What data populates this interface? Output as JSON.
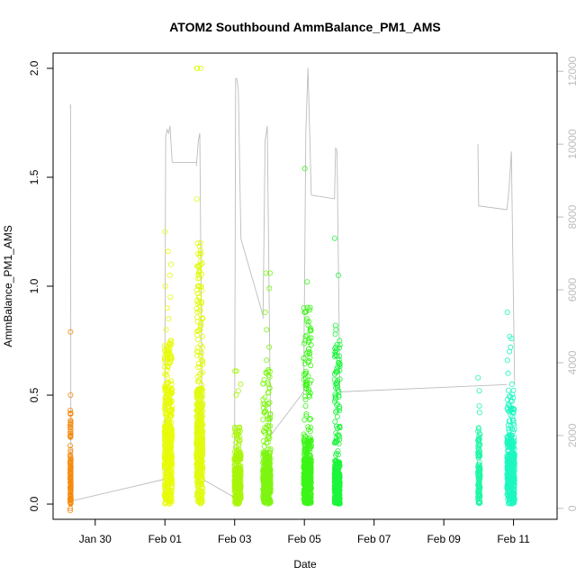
{
  "chart_data": {
    "type": "scatter",
    "title": "ATOM2 Southbound AmmBalance_PM1_AMS",
    "xlabel": "Date",
    "ylabel": "AmmBalance_PM1_AMS",
    "xlim": [
      "2018-01-28T19:00",
      "2018-02-12T06:00"
    ],
    "ylim": [
      -0.07,
      2.07
    ],
    "y2lim": [
      -300,
      12500
    ],
    "x_ticks": [
      {
        "value": "2018-01-30",
        "label": "Jan 30"
      },
      {
        "value": "2018-02-01",
        "label": "Feb 01"
      },
      {
        "value": "2018-02-03",
        "label": "Feb 03"
      },
      {
        "value": "2018-02-05",
        "label": "Feb 05"
      },
      {
        "value": "2018-02-07",
        "label": "Feb 07"
      },
      {
        "value": "2018-02-09",
        "label": "Feb 09"
      },
      {
        "value": "2018-02-11",
        "label": "Feb 11"
      }
    ],
    "y_ticks": [
      {
        "value": 0.0,
        "label": "0.0"
      },
      {
        "value": 0.5,
        "label": "0.5"
      },
      {
        "value": 1.0,
        "label": "1.0"
      },
      {
        "value": 1.5,
        "label": "1.5"
      },
      {
        "value": 2.0,
        "label": "2.0"
      }
    ],
    "y2_ticks": [
      {
        "value": 0,
        "label": "0"
      },
      {
        "value": 2000,
        "label": "2000"
      },
      {
        "value": 4000,
        "label": "4000"
      },
      {
        "value": 6000,
        "label": "6000"
      },
      {
        "value": 8000,
        "label": "8000"
      },
      {
        "value": 10000,
        "label": "10000"
      },
      {
        "value": 12000,
        "label": "12000"
      }
    ],
    "grid": false,
    "series": [
      {
        "color": "#f58a0e",
        "x_start": "2018-01-29T06:45",
        "x_end": "2018-01-29T07:15",
        "count": 120,
        "median": 0.12,
        "y_max": 0.79,
        "outliers": [
          0.79,
          0.5,
          0.37,
          0.35,
          0.33,
          0.31,
          -0.03,
          -0.02
        ]
      },
      {
        "color": "#e8fb0a",
        "x_start": "2018-01-31T23:40",
        "x_end": "2018-02-01T05:00",
        "count": 520,
        "median": 0.27,
        "y_max": 1.25,
        "outliers": [
          1.25,
          1.16,
          1.1,
          1.05,
          1.0,
          0.95,
          0.9,
          0.85,
          0.8,
          0.75,
          0.7,
          0.68
        ]
      },
      {
        "color": "#e0fb10",
        "x_start": "2018-02-01T21:40",
        "x_end": "2018-02-02T02:00",
        "count": 520,
        "median": 0.27,
        "y_max": 2.0,
        "outliers": [
          2.0,
          2.0,
          2.0,
          1.4,
          1.2,
          1.15,
          1.1,
          1.05,
          1.0,
          0.92,
          0.85,
          0.8,
          0.72,
          0.68
        ]
      },
      {
        "color": "#a8f50a",
        "x_start": "2018-02-02T23:50",
        "x_end": "2018-02-03T04:20",
        "count": 320,
        "median": 0.12,
        "y_max": 0.61,
        "outliers": [
          0.61,
          0.61,
          0.55,
          0.52,
          0.5
        ]
      },
      {
        "color": "#7df512",
        "x_start": "2018-02-03T19:30",
        "x_end": "2018-02-04T00:45",
        "count": 420,
        "median": 0.12,
        "y_max": 1.06,
        "outliers": [
          1.06,
          1.06,
          0.99,
          0.88,
          0.8,
          0.72,
          0.66,
          0.6,
          0.55
        ]
      },
      {
        "color": "#3cf518",
        "x_start": "2018-02-04T23:30",
        "x_end": "2018-02-05T04:45",
        "count": 480,
        "median": 0.15,
        "y_max": 1.54,
        "outliers": [
          1.54,
          1.02,
          0.88,
          0.85,
          0.8,
          0.75,
          0.7,
          0.65,
          0.6,
          0.55
        ]
      },
      {
        "color": "#1cf53c",
        "x_start": "2018-02-05T20:45",
        "x_end": "2018-02-06T00:30",
        "count": 420,
        "median": 0.1,
        "y_max": 1.22,
        "outliers": [
          1.22,
          1.05,
          0.82,
          0.8,
          0.78,
          0.75,
          0.72,
          0.7,
          0.68,
          0.65,
          0.62
        ]
      },
      {
        "color": "#1ff7a6",
        "x_start": "2018-02-09T23:30",
        "x_end": "2018-02-10T01:00",
        "count": 120,
        "median": 0.13,
        "y_max": 0.58,
        "outliers": [
          0.58,
          0.52,
          0.45,
          0.42,
          0.35,
          0.3
        ]
      },
      {
        "color": "#1df7c0",
        "x_start": "2018-02-10T19:30",
        "x_end": "2018-02-11T00:45",
        "count": 420,
        "median": 0.16,
        "y_max": 0.88,
        "outliers": [
          0.88,
          0.77,
          0.76,
          0.72,
          0.7,
          0.66,
          0.6,
          0.55
        ]
      }
    ],
    "secondary_line": {
      "color": "#bdbdbd",
      "segments": [
        {
          "x": [
            "2018-01-29T06:45",
            "2018-01-29T07:00",
            "2018-01-29T07:15"
          ],
          "y": [
            11000,
            11100,
            200
          ]
        },
        {
          "x": [
            "2018-01-29T07:15",
            "2018-01-31T23:40"
          ],
          "y": [
            200,
            800
          ]
        },
        {
          "x": [
            "2018-01-31T23:40",
            "2018-02-01T00:30",
            "2018-02-01T01:30",
            "2018-02-01T02:30",
            "2018-02-01T03:30",
            "2018-02-01T05:00"
          ],
          "y": [
            150,
            10200,
            10400,
            10300,
            10500,
            9500
          ]
        },
        {
          "x": [
            "2018-02-01T05:00",
            "2018-02-01T21:40"
          ],
          "y": [
            9500,
            9500
          ]
        },
        {
          "x": [
            "2018-02-01T21:40",
            "2018-02-01T23:00",
            "2018-02-02T00:00",
            "2018-02-02T02:00"
          ],
          "y": [
            9400,
            10100,
            10300,
            800
          ]
        },
        {
          "x": [
            "2018-02-02T02:00",
            "2018-02-02T23:50"
          ],
          "y": [
            800,
            300
          ]
        },
        {
          "x": [
            "2018-02-02T23:50",
            "2018-02-03T00:40",
            "2018-02-03T01:30",
            "2018-02-03T02:30",
            "2018-02-03T04:20"
          ],
          "y": [
            350,
            11800,
            11800,
            11500,
            7400
          ]
        },
        {
          "x": [
            "2018-02-03T04:20",
            "2018-02-03T19:30"
          ],
          "y": [
            7400,
            5300
          ]
        },
        {
          "x": [
            "2018-02-03T19:30",
            "2018-02-03T21:00",
            "2018-02-03T22:30",
            "2018-02-04T00:45"
          ],
          "y": [
            5200,
            10100,
            10500,
            2000
          ]
        },
        {
          "x": [
            "2018-02-04T00:45",
            "2018-02-04T23:30"
          ],
          "y": [
            2000,
            3200
          ]
        },
        {
          "x": [
            "2018-02-04T23:30",
            "2018-02-05T01:00",
            "2018-02-05T02:30",
            "2018-02-05T04:45"
          ],
          "y": [
            3100,
            10300,
            12100,
            8600
          ]
        },
        {
          "x": [
            "2018-02-05T04:45",
            "2018-02-05T20:45"
          ],
          "y": [
            8600,
            8500
          ]
        },
        {
          "x": [
            "2018-02-05T20:45",
            "2018-02-05T21:30",
            "2018-02-05T22:30",
            "2018-02-06T00:30"
          ],
          "y": [
            8500,
            9900,
            9800,
            3200
          ]
        },
        {
          "x": [
            "2018-02-06T00:30",
            "2018-02-10T19:30"
          ],
          "y": [
            3200,
            3400
          ]
        },
        {
          "x": [
            "2018-02-09T23:30",
            "2018-02-10T00:00",
            "2018-02-10T01:00"
          ],
          "y": [
            10000,
            8300,
            8300
          ]
        },
        {
          "x": [
            "2018-02-10T01:00",
            "2018-02-10T19:30"
          ],
          "y": [
            8300,
            8200
          ]
        },
        {
          "x": [
            "2018-02-10T19:30",
            "2018-02-10T21:00",
            "2018-02-10T22:30",
            "2018-02-11T00:45"
          ],
          "y": [
            8200,
            8800,
            9800,
            3400
          ]
        }
      ]
    }
  }
}
